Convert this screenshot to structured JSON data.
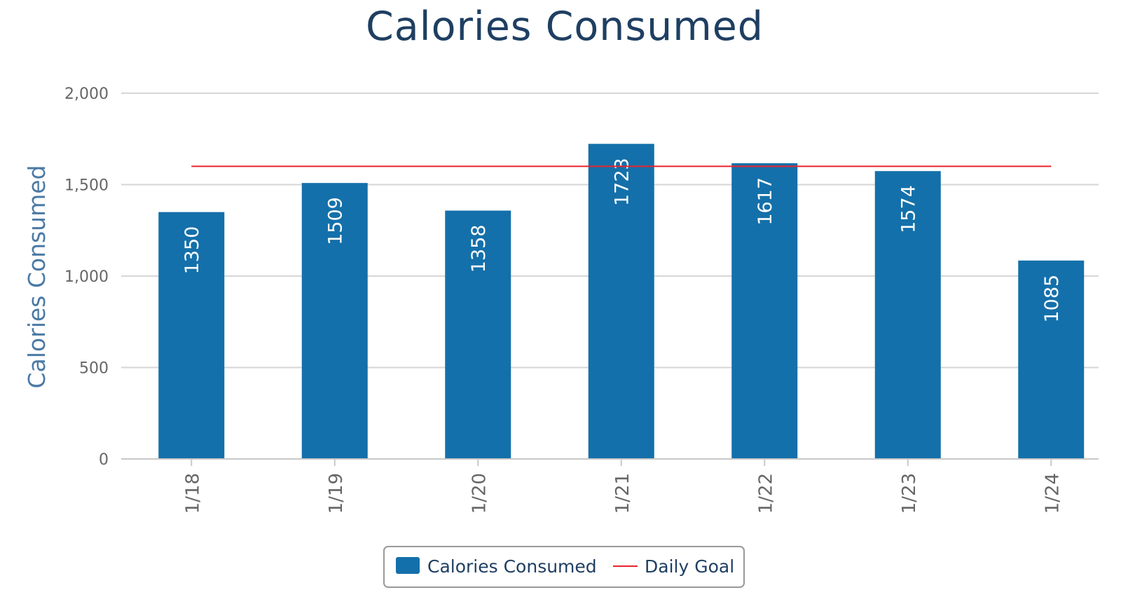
{
  "chart_data": {
    "type": "bar",
    "title": "Calories Consumed",
    "xlabel": "",
    "ylabel": "Calories Consumed",
    "categories": [
      "1/18",
      "1/19",
      "1/20",
      "1/21",
      "1/22",
      "1/23",
      "1/24"
    ],
    "series": [
      {
        "name": "Calories Consumed",
        "type": "bar",
        "values": [
          1350,
          1509,
          1358,
          1723,
          1617,
          1574,
          1085
        ],
        "color": "#1470aa"
      },
      {
        "name": "Daily Goal",
        "type": "line",
        "values": [
          1600,
          1600,
          1600,
          1600,
          1600,
          1600,
          1600
        ],
        "color": "#e8232d"
      }
    ],
    "ylim": [
      0,
      2000
    ],
    "yticks": [
      0,
      500,
      1000,
      1500,
      2000
    ],
    "ytick_labels": [
      "0",
      "500",
      "1,000",
      "1,500",
      "2,000"
    ],
    "grid": true,
    "legend": {
      "position": "bottom-center",
      "items": [
        "Calories Consumed",
        "Daily Goal"
      ]
    }
  }
}
